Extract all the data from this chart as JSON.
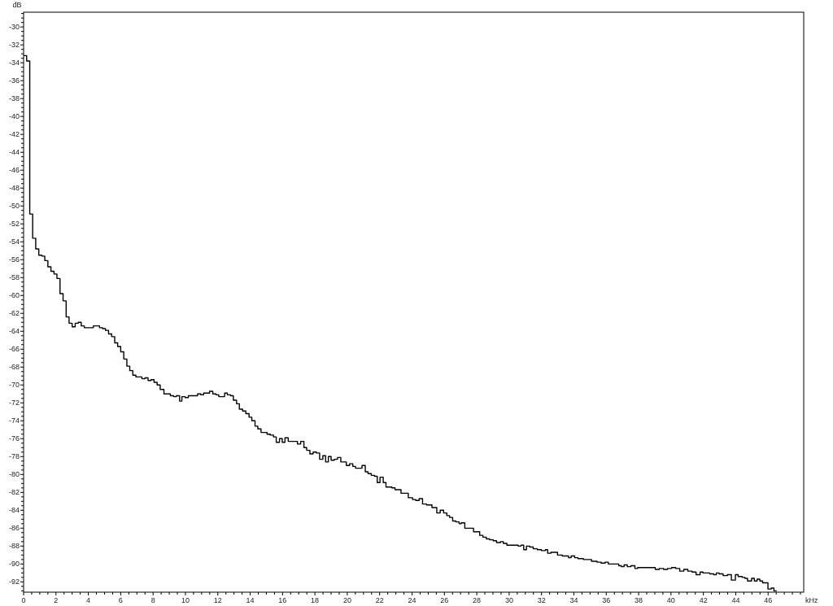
{
  "chart_data": {
    "type": "step",
    "xlabel": "kHz",
    "ylabel": "dB",
    "xlim": [
      0,
      48.2
    ],
    "ylim": [
      -93.15,
      -28.35
    ],
    "xticks": [
      0,
      {
        "value": 0.5,
        "label": null
      },
      {
        "value": 1,
        "label": null
      },
      {
        "value": 1.5,
        "label": null
      },
      2,
      {
        "value": 2.5,
        "label": null
      },
      {
        "value": 3,
        "label": null
      },
      {
        "value": 3.5,
        "label": null
      },
      4,
      {
        "value": 4.5,
        "label": null
      },
      {
        "value": 5,
        "label": null
      },
      {
        "value": 5.5,
        "label": null
      },
      6,
      {
        "value": 6.5,
        "label": null
      },
      {
        "value": 7,
        "label": null
      },
      {
        "value": 7.5,
        "label": null
      },
      8,
      {
        "value": 8.5,
        "label": null
      },
      {
        "value": 9,
        "label": null
      },
      {
        "value": 9.5,
        "label": null
      },
      10,
      {
        "value": 10.5,
        "label": null
      },
      {
        "value": 11,
        "label": null
      },
      {
        "value": 11.5,
        "label": null
      },
      12,
      {
        "value": 12.5,
        "label": null
      },
      {
        "value": 13,
        "label": null
      },
      {
        "value": 13.5,
        "label": null
      },
      14,
      {
        "value": 14.5,
        "label": null
      },
      {
        "value": 15,
        "label": null
      },
      {
        "value": 15.5,
        "label": null
      },
      16,
      {
        "value": 16.5,
        "label": null
      },
      {
        "value": 17,
        "label": null
      },
      {
        "value": 17.5,
        "label": null
      },
      18,
      {
        "value": 18.5,
        "label": null
      },
      {
        "value": 19,
        "label": null
      },
      {
        "value": 19.5,
        "label": null
      },
      20,
      {
        "value": 20.5,
        "label": null
      },
      {
        "value": 21,
        "label": null
      },
      {
        "value": 21.5,
        "label": null
      },
      22,
      {
        "value": 22.5,
        "label": null
      },
      {
        "value": 23,
        "label": null
      },
      {
        "value": 23.5,
        "label": null
      },
      24,
      {
        "value": 24.5,
        "label": null
      },
      {
        "value": 25,
        "label": null
      },
      {
        "value": 25.5,
        "label": null
      },
      26,
      {
        "value": 26.5,
        "label": null
      },
      {
        "value": 27,
        "label": null
      },
      {
        "value": 27.5,
        "label": null
      },
      28,
      {
        "value": 28.5,
        "label": null
      },
      {
        "value": 29,
        "label": null
      },
      {
        "value": 29.5,
        "label": null
      },
      30,
      {
        "value": 30.5,
        "label": null
      },
      {
        "value": 31,
        "label": null
      },
      {
        "value": 31.5,
        "label": null
      },
      32,
      {
        "value": 32.5,
        "label": null
      },
      {
        "value": 33,
        "label": null
      },
      {
        "value": 33.5,
        "label": null
      },
      34,
      {
        "value": 34.5,
        "label": null
      },
      {
        "value": 35,
        "label": null
      },
      {
        "value": 35.5,
        "label": null
      },
      36,
      {
        "value": 36.5,
        "label": null
      },
      {
        "value": 37,
        "label": null
      },
      {
        "value": 37.5,
        "label": null
      },
      38,
      {
        "value": 38.5,
        "label": null
      },
      {
        "value": 39,
        "label": null
      },
      {
        "value": 39.5,
        "label": null
      },
      40,
      {
        "value": 40.5,
        "label": null
      },
      {
        "value": 41,
        "label": null
      },
      {
        "value": 41.5,
        "label": null
      },
      42,
      {
        "value": 42.5,
        "label": null
      },
      {
        "value": 43,
        "label": null
      },
      {
        "value": 43.5,
        "label": null
      },
      44,
      {
        "value": 44.5,
        "label": null
      },
      {
        "value": 45,
        "label": null
      },
      {
        "value": 45.5,
        "label": null
      },
      46,
      {
        "value": 46.5,
        "label": null
      },
      {
        "value": 47,
        "label": null
      },
      {
        "value": 47.5,
        "label": null
      },
      {
        "value": 48,
        "label": null
      }
    ],
    "yticks": [
      {
        "value": -93,
        "label": null
      },
      {
        "value": -92.5,
        "label": null
      },
      -92,
      {
        "value": -91.5,
        "label": null
      },
      {
        "value": -91,
        "label": null
      },
      {
        "value": -90.5,
        "label": null
      },
      -90,
      {
        "value": -89.5,
        "label": null
      },
      {
        "value": -89,
        "label": null
      },
      {
        "value": -88.5,
        "label": null
      },
      -88,
      {
        "value": -87.5,
        "label": null
      },
      {
        "value": -87,
        "label": null
      },
      {
        "value": -86.5,
        "label": null
      },
      -86,
      {
        "value": -85.5,
        "label": null
      },
      {
        "value": -85,
        "label": null
      },
      {
        "value": -84.5,
        "label": null
      },
      -84,
      {
        "value": -83.5,
        "label": null
      },
      {
        "value": -83,
        "label": null
      },
      {
        "value": -82.5,
        "label": null
      },
      -82,
      {
        "value": -81.5,
        "label": null
      },
      {
        "value": -81,
        "label": null
      },
      {
        "value": -80.5,
        "label": null
      },
      -80,
      {
        "value": -79.5,
        "label": null
      },
      {
        "value": -79,
        "label": null
      },
      {
        "value": -78.5,
        "label": null
      },
      -78,
      {
        "value": -77.5,
        "label": null
      },
      {
        "value": -77,
        "label": null
      },
      {
        "value": -76.5,
        "label": null
      },
      -76,
      {
        "value": -75.5,
        "label": null
      },
      {
        "value": -75,
        "label": null
      },
      {
        "value": -74.5,
        "label": null
      },
      -74,
      {
        "value": -73.5,
        "label": null
      },
      {
        "value": -73,
        "label": null
      },
      {
        "value": -72.5,
        "label": null
      },
      -72,
      {
        "value": -71.5,
        "label": null
      },
      {
        "value": -71,
        "label": null
      },
      {
        "value": -70.5,
        "label": null
      },
      -70,
      {
        "value": -69.5,
        "label": null
      },
      {
        "value": -69,
        "label": null
      },
      {
        "value": -68.5,
        "label": null
      },
      -68,
      {
        "value": -67.5,
        "label": null
      },
      {
        "value": -67,
        "label": null
      },
      {
        "value": -66.5,
        "label": null
      },
      -66,
      {
        "value": -65.5,
        "label": null
      },
      {
        "value": -65,
        "label": null
      },
      {
        "value": -64.5,
        "label": null
      },
      -64,
      {
        "value": -63.5,
        "label": null
      },
      {
        "value": -63,
        "label": null
      },
      {
        "value": -62.5,
        "label": null
      },
      -62,
      {
        "value": -61.5,
        "label": null
      },
      {
        "value": -61,
        "label": null
      },
      {
        "value": -60.5,
        "label": null
      },
      -60,
      {
        "value": -59.5,
        "label": null
      },
      {
        "value": -59,
        "label": null
      },
      {
        "value": -58.5,
        "label": null
      },
      -58,
      {
        "value": -57.5,
        "label": null
      },
      {
        "value": -57,
        "label": null
      },
      {
        "value": -56.5,
        "label": null
      },
      -56,
      {
        "value": -55.5,
        "label": null
      },
      {
        "value": -55,
        "label": null
      },
      {
        "value": -54.5,
        "label": null
      },
      -54,
      {
        "value": -53.5,
        "label": null
      },
      {
        "value": -53,
        "label": null
      },
      {
        "value": -52.5,
        "label": null
      },
      -52,
      {
        "value": -51.5,
        "label": null
      },
      {
        "value": -51,
        "label": null
      },
      {
        "value": -50.5,
        "label": null
      },
      -50,
      {
        "value": -49.5,
        "label": null
      },
      {
        "value": -49,
        "label": null
      },
      {
        "value": -48.5,
        "label": null
      },
      -48,
      {
        "value": -47.5,
        "label": null
      },
      {
        "value": -47,
        "label": null
      },
      {
        "value": -46.5,
        "label": null
      },
      -46,
      {
        "value": -45.5,
        "label": null
      },
      {
        "value": -45,
        "label": null
      },
      {
        "value": -44.5,
        "label": null
      },
      -44,
      {
        "value": -43.5,
        "label": null
      },
      {
        "value": -43,
        "label": null
      },
      {
        "value": -42.5,
        "label": null
      },
      -42,
      {
        "value": -41.5,
        "label": null
      },
      {
        "value": -41,
        "label": null
      },
      {
        "value": -40.5,
        "label": null
      },
      -40,
      {
        "value": -39.5,
        "label": null
      },
      {
        "value": -39,
        "label": null
      },
      {
        "value": -38.5,
        "label": null
      },
      -38,
      {
        "value": -37.5,
        "label": null
      },
      {
        "value": -37,
        "label": null
      },
      {
        "value": -36.5,
        "label": null
      },
      -36,
      {
        "value": -35.5,
        "label": null
      },
      {
        "value": -35,
        "label": null
      },
      {
        "value": -34.5,
        "label": null
      },
      -34,
      {
        "value": -33.5,
        "label": null
      },
      {
        "value": -33,
        "label": null
      },
      {
        "value": -32.5,
        "label": null
      },
      -32,
      {
        "value": -31.5,
        "label": null
      },
      {
        "value": -31,
        "label": null
      },
      {
        "value": -30.5,
        "label": null
      },
      -30,
      {
        "value": -29.5,
        "label": null
      },
      {
        "value": -29,
        "label": null
      },
      {
        "value": -28.5,
        "label": null
      }
    ],
    "x": [
      0,
      0.19,
      0.38,
      0.56,
      0.75,
      0.94,
      1.13,
      1.31,
      1.5,
      1.69,
      1.88,
      2.06,
      2.25,
      2.44,
      2.63,
      2.81,
      3,
      3.19,
      3.38,
      3.56,
      3.75,
      3.94,
      4.31,
      4.69,
      4.88,
      5.06,
      5.25,
      5.44,
      5.63,
      5.81,
      6,
      6.19,
      6.38,
      6.56,
      6.75,
      6.94,
      7.31,
      7.5,
      7.69,
      7.88,
      8.06,
      8.25,
      8.44,
      8.67,
      9.07,
      9.27,
      9.44,
      9.64,
      9.78,
      9.98,
      10.18,
      10.55,
      10.75,
      10.95,
      11.12,
      11.32,
      11.49,
      11.69,
      11.89,
      12.06,
      12.26,
      12.42,
      12.59,
      12.79,
      12.96,
      13.16,
      13.33,
      13.53,
      13.73,
      13.93,
      14.1,
      14.3,
      14.47,
      14.67,
      14.84,
      15.04,
      15.24,
      15.44,
      15.61,
      15.81,
      15.98,
      16.15,
      16.35,
      16.92,
      17.12,
      17.32,
      17.49,
      17.69,
      17.89,
      18.09,
      18.29,
      18.49,
      18.66,
      18.83,
      19,
      19.2,
      19.4,
      19.6,
      19.94,
      20.14,
      20.34,
      20.51,
      20.91,
      21.11,
      21.28,
      21.48,
      21.68,
      21.85,
      22.02,
      22.22,
      22.39,
      22.75,
      22.95,
      23.12,
      23.32,
      23.52,
      23.77,
      24.03,
      24.23,
      24.44,
      24.65,
      24.9,
      25.23,
      25.53,
      25.74,
      25.95,
      26.15,
      26.32,
      26.51,
      26.71,
      26.91,
      27.04,
      27.26,
      27.8,
      28.18,
      28.38,
      28.59,
      28.8,
      29.02,
      29.22,
      29.47,
      29.64,
      29.86,
      30.06,
      30.26,
      30.56,
      30.73,
      30.9,
      31.07,
      31.27,
      31.49,
      31.74,
      31.99,
      32.24,
      32.38,
      32.58,
      32.99,
      33.28,
      33.67,
      33.83,
      34.05,
      34.25,
      34.59,
      35.09,
      35.43,
      35.68,
      35.93,
      36.13,
      36.43,
      36.77,
      36.94,
      37.1,
      37.3,
      37.52,
      37.77,
      37.94,
      38.28,
      39.03,
      39.28,
      39.54,
      39.79,
      40.04,
      40.29,
      40.54,
      40.79,
      41.04,
      41.3,
      41.55,
      41.8,
      41.97,
      42.13,
      42.39,
      42.64,
      42.8,
      42.97,
      43.22,
      43.48,
      43.73,
      43.98,
      44.15,
      44.4,
      44.57,
      44.73,
      44.98,
      45.15,
      45.32,
      45.49,
      45.66,
      45.99,
      46.19,
      46.36,
      46.53
    ],
    "series": [
      {
        "color": "#000000",
        "values": [
          -33.2,
          -33.8,
          -50.9,
          -53.6,
          -54.8,
          -55.5,
          -55.6,
          -56.1,
          -56.8,
          -57.3,
          -57.6,
          -58.1,
          -59.8,
          -60.6,
          -62.4,
          -63.1,
          -63.5,
          -63.1,
          -63,
          -63.4,
          -63.6,
          -63.6,
          -63.4,
          -63.6,
          -63.7,
          -63.9,
          -64.3,
          -64.6,
          -65.3,
          -65.7,
          -66.3,
          -67.1,
          -67.9,
          -68.4,
          -68.9,
          -69.1,
          -69.3,
          -69.2,
          -69.5,
          -69.4,
          -69.7,
          -70,
          -70.5,
          -71,
          -71.2,
          -71.3,
          -71.2,
          -71.8,
          -71.3,
          -71.4,
          -71.2,
          -71.2,
          -71,
          -71.1,
          -70.9,
          -70.9,
          -70.7,
          -71,
          -71.1,
          -71.3,
          -71.3,
          -70.9,
          -71.1,
          -71.2,
          -71.7,
          -72.1,
          -72.7,
          -72.9,
          -73.2,
          -73.6,
          -74,
          -74.6,
          -74.9,
          -75.3,
          -75.3,
          -75.5,
          -75.6,
          -75.8,
          -76.4,
          -76,
          -76.4,
          -75.9,
          -76.3,
          -76.6,
          -76.3,
          -77,
          -77.3,
          -77.7,
          -77.5,
          -77.6,
          -78.3,
          -77.9,
          -78.6,
          -78,
          -78.4,
          -78.3,
          -78.1,
          -78.6,
          -79,
          -78.8,
          -79.1,
          -79.3,
          -79,
          -79.7,
          -79.9,
          -80.1,
          -80.2,
          -80.9,
          -80.3,
          -80.9,
          -81.4,
          -81.5,
          -81.7,
          -81.7,
          -82.1,
          -82.1,
          -82.6,
          -82.8,
          -82.9,
          -82.7,
          -83.3,
          -83.4,
          -83.7,
          -84.3,
          -84,
          -84.3,
          -84.6,
          -84.8,
          -85.2,
          -85.3,
          -85.5,
          -85.4,
          -86,
          -86.4,
          -86.8,
          -87,
          -87.2,
          -87.3,
          -87.4,
          -87.6,
          -87.5,
          -87.7,
          -87.9,
          -87.9,
          -87.9,
          -88,
          -87.9,
          -88.4,
          -88,
          -88.1,
          -88.3,
          -88.4,
          -88.5,
          -88.4,
          -88.8,
          -88.7,
          -89,
          -89.1,
          -89.3,
          -89.1,
          -89.3,
          -89.4,
          -89.5,
          -89.7,
          -89.8,
          -89.9,
          -89.8,
          -90,
          -90,
          -90.2,
          -90.3,
          -90.1,
          -90.3,
          -90.2,
          -90.5,
          -90.4,
          -90.4,
          -90.6,
          -90.5,
          -90.6,
          -90.5,
          -90.4,
          -90.5,
          -90.8,
          -90.6,
          -90.8,
          -90.9,
          -91.2,
          -90.9,
          -91,
          -91,
          -91.1,
          -91.2,
          -91,
          -91.1,
          -91.3,
          -91.2,
          -91.8,
          -91.2,
          -91.4,
          -91.5,
          -91.6,
          -91.9,
          -91.6,
          -91.9,
          -91.7,
          -91.9,
          -92.1,
          -92.8,
          -92.7,
          -93,
          -93
        ]
      }
    ]
  }
}
